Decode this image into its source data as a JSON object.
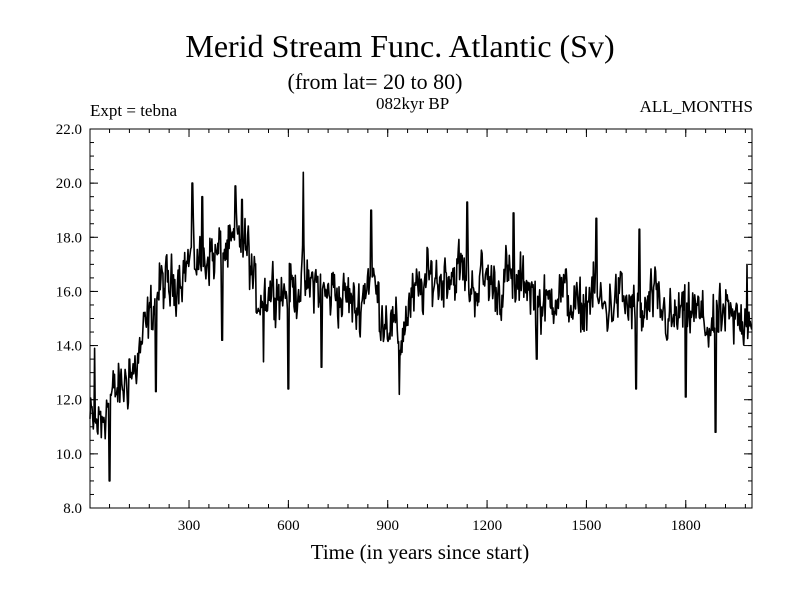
{
  "chart_data": {
    "type": "line",
    "title": "Merid Stream Func. Atlantic (Sv)",
    "subtitle": "(from lat= 20 to 80)",
    "annotations": {
      "left": "Expt = tebna",
      "center": "082kyr BP",
      "right": "ALL_MONTHS"
    },
    "xlabel": "Time (in years since start)",
    "ylabel": "",
    "xlim": [
      1,
      2000
    ],
    "ylim": [
      8.0,
      22.0
    ],
    "xticks": [
      300,
      600,
      900,
      1200,
      1500,
      1800
    ],
    "xtick_labels": [
      "300",
      "600",
      "900",
      "1200",
      "1500",
      "1800"
    ],
    "yticks": [
      8.0,
      10.0,
      12.0,
      14.0,
      16.0,
      18.0,
      20.0,
      22.0
    ],
    "ytick_labels": [
      "8.0",
      "10.0",
      "12.0",
      "14.0",
      "16.0",
      "18.0",
      "20.0",
      "22.0"
    ],
    "grid": false,
    "series": [
      {
        "name": "Merid Stream Func. Atlantic",
        "x": [
          1,
          20,
          40,
          60,
          80,
          100,
          120,
          140,
          160,
          180,
          200,
          220,
          240,
          260,
          280,
          300,
          320,
          340,
          360,
          380,
          400,
          420,
          440,
          460,
          480,
          500,
          520,
          540,
          560,
          580,
          600,
          620,
          640,
          660,
          680,
          700,
          720,
          740,
          760,
          780,
          800,
          820,
          840,
          860,
          880,
          900,
          920,
          940,
          960,
          980,
          1000,
          1020,
          1040,
          1060,
          1080,
          1100,
          1120,
          1140,
          1160,
          1180,
          1200,
          1220,
          1240,
          1260,
          1280,
          1300,
          1320,
          1340,
          1360,
          1380,
          1400,
          1420,
          1440,
          1460,
          1480,
          1500,
          1520,
          1540,
          1560,
          1580,
          1600,
          1620,
          1640,
          1660,
          1680,
          1700,
          1720,
          1740,
          1760,
          1780,
          1800,
          1820,
          1840,
          1860,
          1880,
          1900,
          1920,
          1940,
          1960,
          1980,
          2000
        ],
        "y": [
          11.2,
          11.0,
          11.5,
          12.0,
          12.3,
          12.5,
          12.8,
          13.2,
          14.2,
          15.0,
          15.8,
          16.3,
          16.1,
          16.5,
          16.8,
          17.1,
          17.3,
          16.9,
          17.5,
          17.2,
          17.6,
          17.4,
          17.8,
          17.9,
          17.4,
          15.8,
          15.9,
          16.0,
          16.3,
          15.9,
          16.2,
          16.0,
          16.5,
          16.1,
          16.4,
          16.0,
          15.8,
          16.2,
          15.6,
          15.9,
          15.3,
          15.6,
          16.6,
          16.3,
          15.2,
          15.0,
          14.6,
          14.2,
          15.3,
          15.8,
          16.0,
          16.4,
          16.6,
          16.3,
          16.8,
          16.6,
          16.9,
          16.3,
          16.1,
          16.4,
          16.5,
          16.2,
          16.0,
          16.7,
          16.0,
          16.2,
          16.5,
          15.8,
          15.6,
          15.4,
          15.9,
          16.1,
          15.8,
          15.5,
          15.2,
          15.6,
          16.0,
          15.6,
          15.3,
          15.6,
          15.9,
          15.5,
          15.4,
          15.0,
          15.2,
          15.8,
          15.4,
          15.1,
          14.8,
          15.2,
          15.0,
          15.4,
          15.1,
          14.8,
          14.6,
          14.9,
          15.2,
          14.8,
          14.9,
          15.1,
          15.3
        ]
      }
    ],
    "spikes": [
      [
        15,
        13.9
      ],
      [
        35,
        10.6
      ],
      [
        60,
        9.0
      ],
      [
        120,
        13.5
      ],
      [
        200,
        12.3
      ],
      [
        310,
        20.0
      ],
      [
        340,
        19.5
      ],
      [
        400,
        14.2
      ],
      [
        440,
        19.9
      ],
      [
        460,
        19.4
      ],
      [
        525,
        13.4
      ],
      [
        600,
        12.4
      ],
      [
        645,
        20.4
      ],
      [
        700,
        13.2
      ],
      [
        850,
        19.0
      ],
      [
        935,
        12.2
      ],
      [
        1140,
        19.3
      ],
      [
        1280,
        18.9
      ],
      [
        1350,
        13.5
      ],
      [
        1530,
        18.7
      ],
      [
        1650,
        12.4
      ],
      [
        1660,
        18.3
      ],
      [
        1800,
        12.1
      ],
      [
        1890,
        10.8
      ],
      [
        1985,
        17.0
      ]
    ],
    "noise_amplitude": 1.1
  }
}
